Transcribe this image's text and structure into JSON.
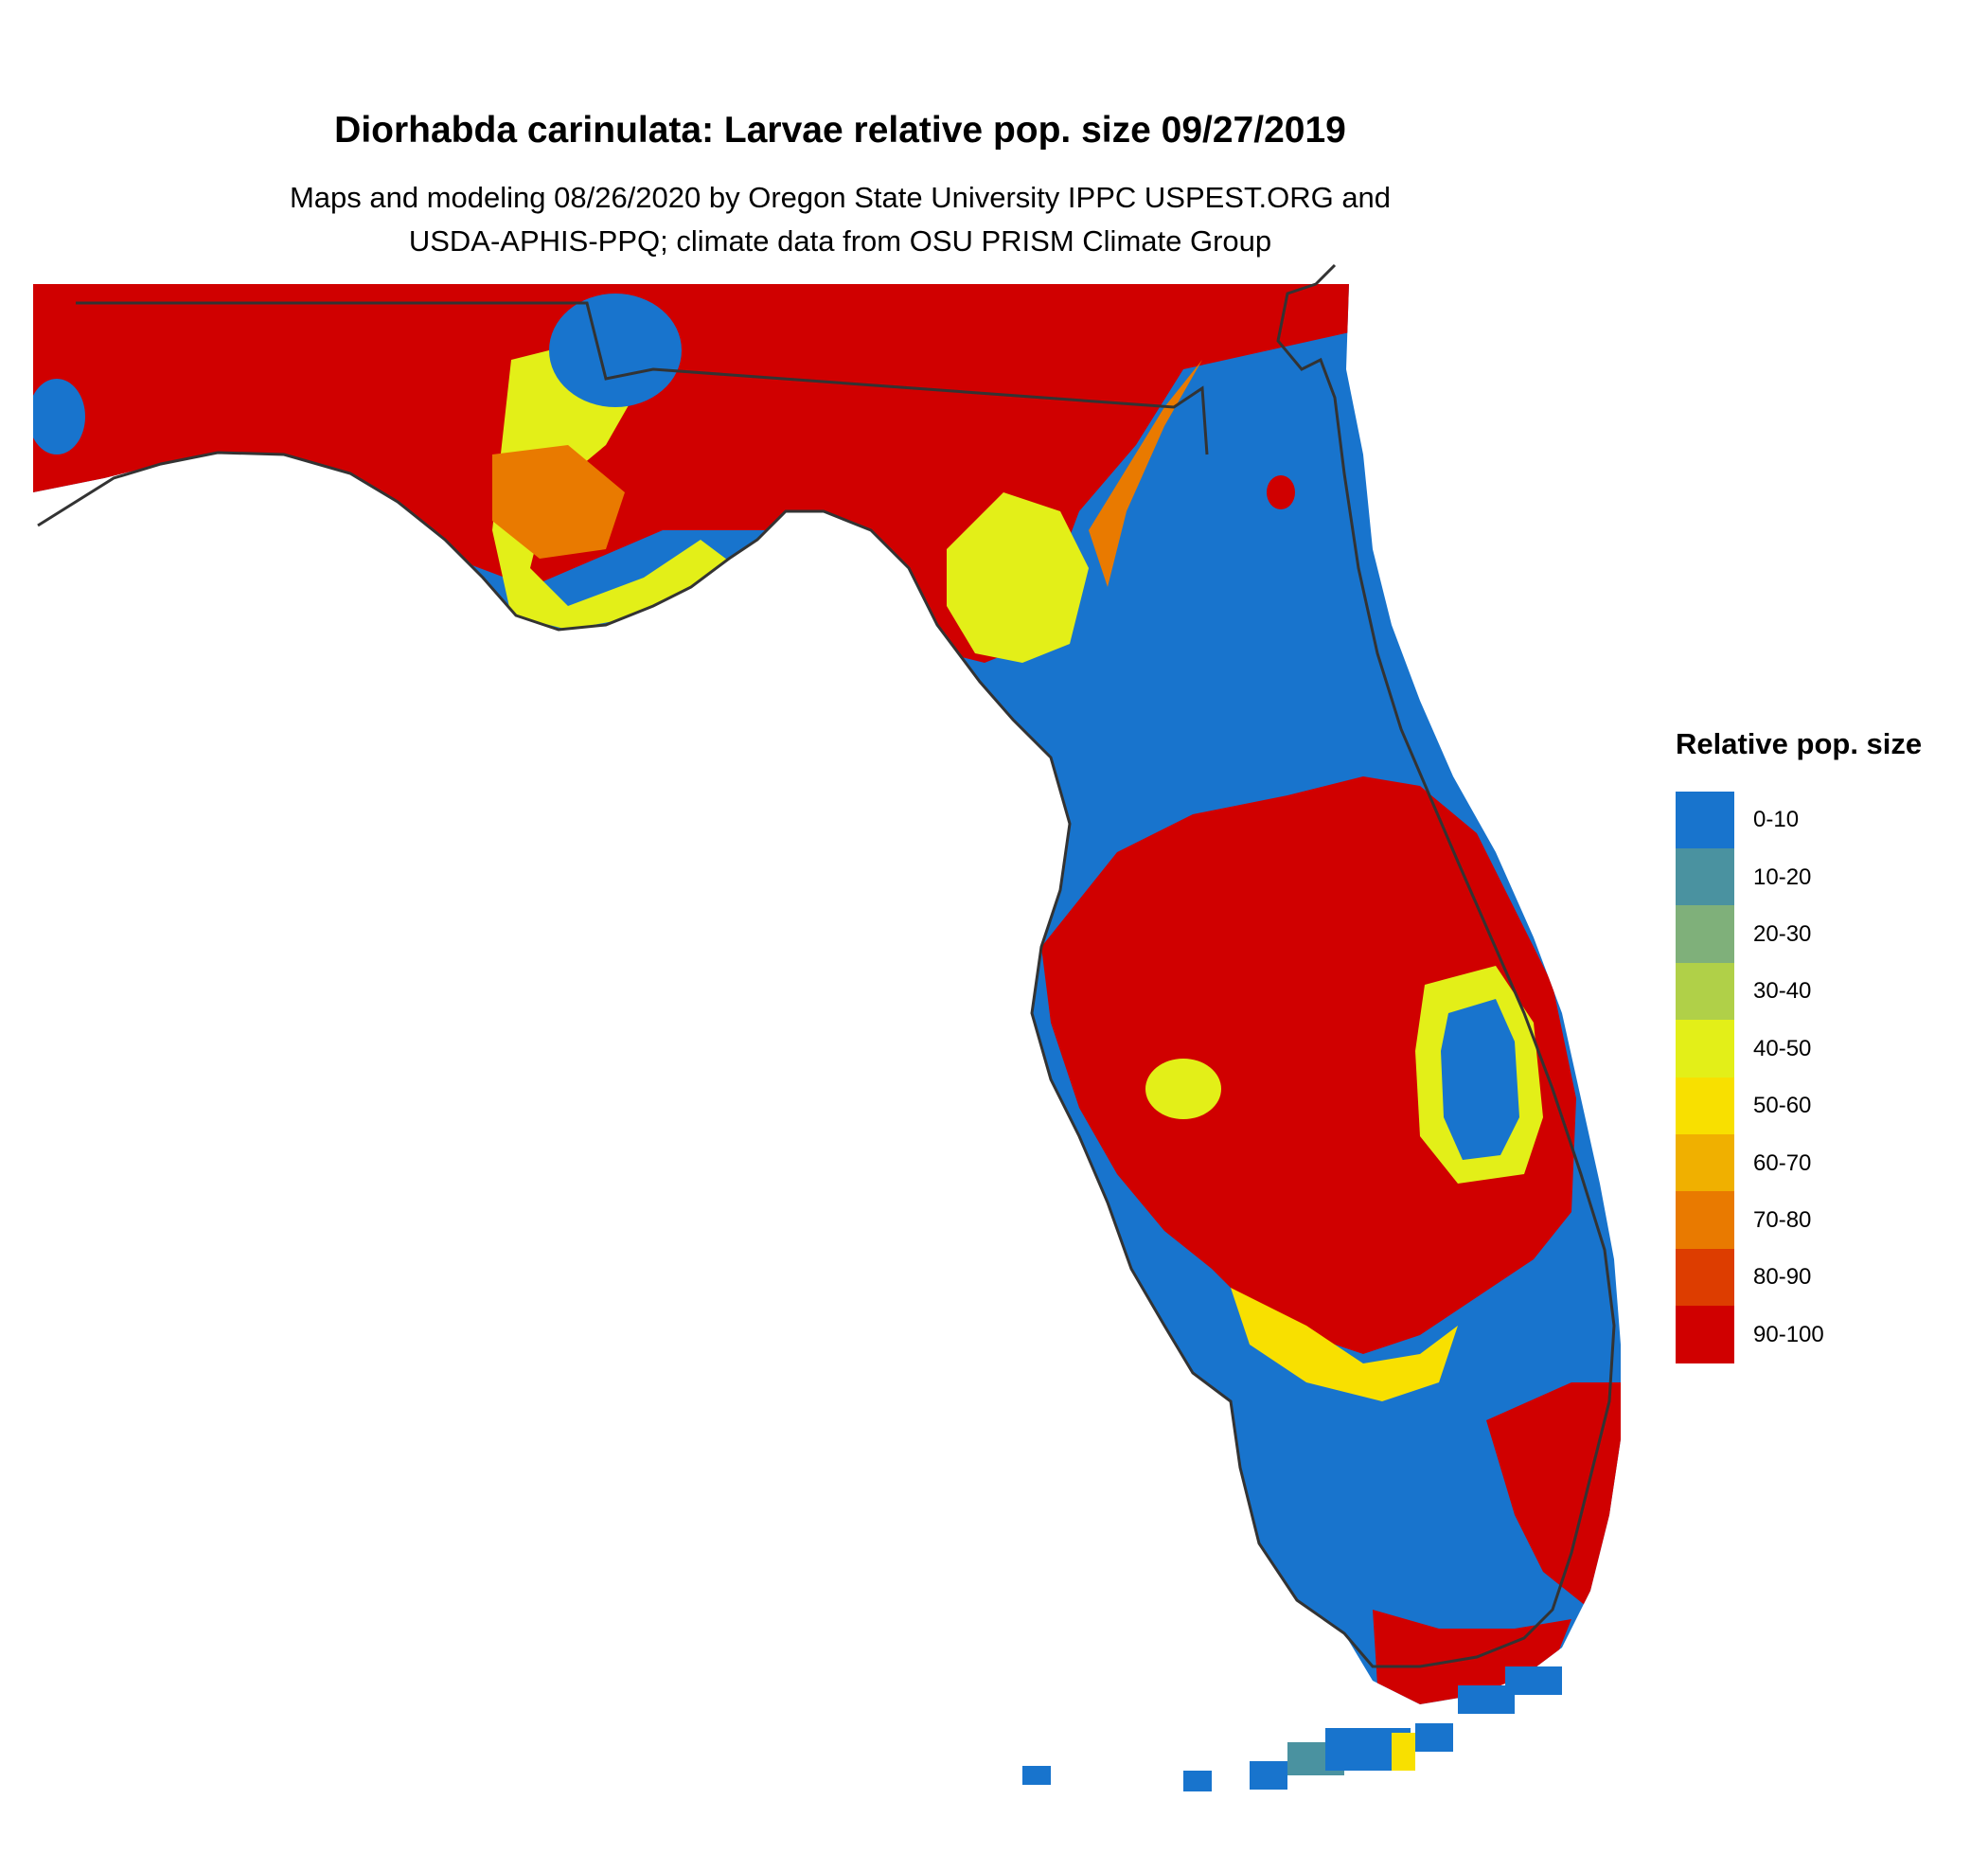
{
  "title": "Diorhabda carinulata: Larvae relative pop. size 09/27/2019",
  "subtitle_line1": "Maps and modeling 08/26/2020 by Oregon State University IPPC USPEST.ORG and",
  "subtitle_line2": "USDA-APHIS-PPQ; climate data from OSU PRISM Climate Group",
  "legend": {
    "title": "Relative pop. size",
    "items": [
      {
        "label": "0-10",
        "color": "#1874cd"
      },
      {
        "label": "10-20",
        "color": "#4a92a0"
      },
      {
        "label": "20-30",
        "color": "#7fb07a"
      },
      {
        "label": "30-40",
        "color": "#b0d048"
      },
      {
        "label": "40-50",
        "color": "#e3ef18"
      },
      {
        "label": "50-60",
        "color": "#f8e000"
      },
      {
        "label": "60-70",
        "color": "#f0b000"
      },
      {
        "label": "70-80",
        "color": "#e97a00"
      },
      {
        "label": "80-90",
        "color": "#dd3d00"
      },
      {
        "label": "90-100",
        "color": "#d00000"
      }
    ]
  },
  "colors": {
    "outline": "#333333",
    "blue": "#1874cd",
    "red": "#d00000",
    "yellow": "#e3ef18",
    "orange": "#e97a00",
    "gold": "#f8e000",
    "teal": "#4a92a0"
  }
}
